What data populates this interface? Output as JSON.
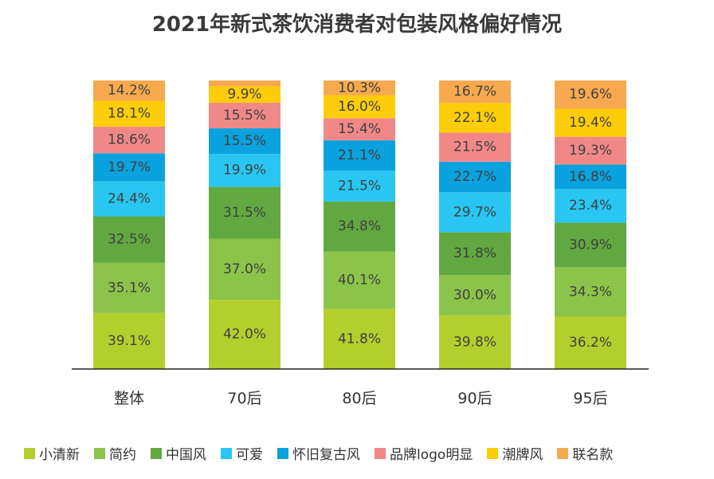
{
  "chart_data": {
    "type": "bar",
    "stacked": true,
    "title": "2021年新式茶饮消费者对包装风格偏好情况",
    "categories": [
      "整体",
      "70后",
      "80后",
      "90后",
      "95后"
    ],
    "series": [
      {
        "name": "小清新",
        "color": "#b3cf2e",
        "values": [
          39.1,
          42.0,
          41.8,
          39.8,
          36.2
        ]
      },
      {
        "name": "简约",
        "color": "#8cc34a",
        "values": [
          35.1,
          37.0,
          40.1,
          30.0,
          34.3
        ]
      },
      {
        "name": "中国风",
        "color": "#62a840",
        "values": [
          32.5,
          31.5,
          34.8,
          31.8,
          30.9
        ]
      },
      {
        "name": "可爱",
        "color": "#29c6f2",
        "values": [
          24.4,
          19.9,
          21.5,
          29.7,
          23.4
        ]
      },
      {
        "name": "怀旧复古风",
        "color": "#0aa2de",
        "values": [
          19.7,
          15.5,
          21.1,
          22.7,
          16.8
        ]
      },
      {
        "name": "品牌logo明显",
        "color": "#f08888",
        "values": [
          18.6,
          15.5,
          15.4,
          21.5,
          19.3
        ]
      },
      {
        "name": "潮牌风",
        "color": "#fdcd0a",
        "values": [
          18.1,
          9.9,
          16.0,
          22.1,
          19.4
        ]
      },
      {
        "name": "联名款",
        "color": "#f6a94e",
        "values": [
          14.2,
          3.6,
          10.3,
          16.7,
          19.6
        ]
      }
    ],
    "value_labels": [
      [
        "39.1%",
        "35.1%",
        "32.5%",
        "24.4%",
        "19.7%",
        "18.6%",
        "18.1%",
        "14.2%"
      ],
      [
        "42.0%",
        "37.0%",
        "31.5%",
        "19.9%",
        "15.5%",
        "15.5%",
        "9.9%",
        ""
      ],
      [
        "41.8%",
        "40.1%",
        "34.8%",
        "21.5%",
        "21.1%",
        "15.4%",
        "16.0%",
        "10.3%"
      ],
      [
        "39.8%",
        "30.0%",
        "31.8%",
        "29.7%",
        "22.7%",
        "21.5%",
        "22.1%",
        "16.7%"
      ],
      [
        "36.2%",
        "34.3%",
        "30.9%",
        "23.4%",
        "16.8%",
        "19.3%",
        "19.4%",
        "19.6%"
      ]
    ],
    "legend_position": "bottom",
    "grid": false
  }
}
